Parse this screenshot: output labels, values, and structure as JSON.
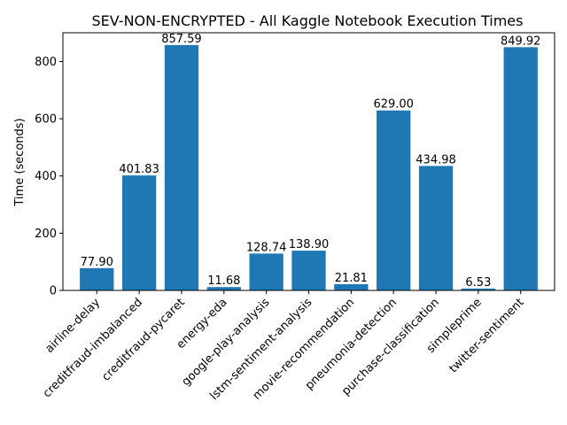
{
  "chart_data": {
    "type": "bar",
    "title": "SEV-NON-ENCRYPTED - All Kaggle Notebook Execution Times",
    "xlabel": "",
    "ylabel": "Time (seconds)",
    "categories": [
      "airline-delay",
      "creditfraud-imbalanced",
      "creditfraud-pycaret",
      "energy-eda",
      "google-play-analysis",
      "lstm-sentiment-analysis",
      "movie-recommendation",
      "pneumonia-detection",
      "purchase-classification",
      "simpleprime",
      "twitter-sentiment"
    ],
    "values": [
      77.9,
      401.83,
      857.59,
      11.68,
      128.74,
      138.9,
      21.81,
      629.0,
      434.98,
      6.53,
      849.92
    ],
    "value_labels": [
      "77.90",
      "401.83",
      "857.59",
      "11.68",
      "128.74",
      "138.90",
      "21.81",
      "629.00",
      "434.98",
      "6.53",
      "849.92"
    ],
    "ylim": [
      0,
      900.47
    ],
    "yticks": [
      0,
      200,
      400,
      600,
      800
    ],
    "ytick_labels": [
      "0",
      "200",
      "400",
      "600",
      "800"
    ],
    "grid": false,
    "bar_color": "#1f77b4"
  }
}
